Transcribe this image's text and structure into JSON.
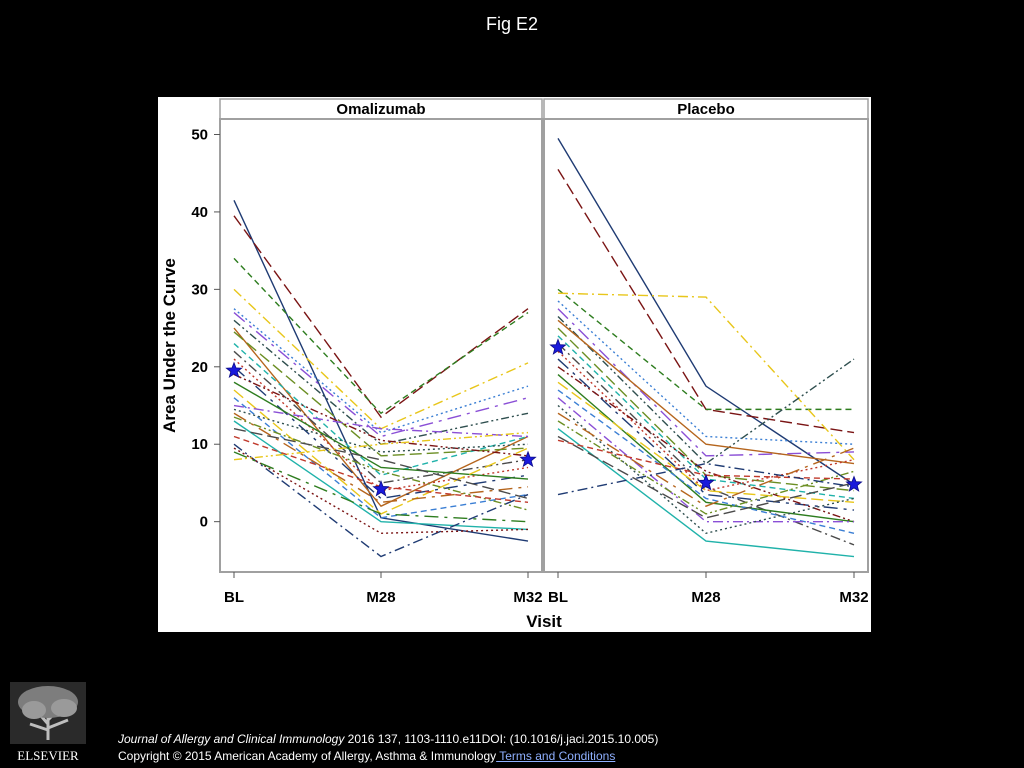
{
  "slide": {
    "title": "Fig E2",
    "citation_journal": "Journal of Allergy and Clinical Immunology",
    "citation_rest": " 2016 137, 1103-1110.e11DOI: (10.1016/j.jaci.2015.10.005)",
    "copyright": "Copyright © 2015 American Academy of Allergy, Asthma & Immunology",
    "terms_link": " Terms and Conditions",
    "publisher_logo_text": "ELSEVIER"
  },
  "colors": {
    "background": "#000000",
    "panel_strip": "#ffffff",
    "median_star": "#1a1adb",
    "series_palette": [
      "#1f3b73",
      "#7a1414",
      "#2e7d1f",
      "#e8c61a",
      "#3b7fd4",
      "#8a4fd6",
      "#2f4f4f",
      "#b5651d",
      "#6b8e23",
      "#20b2aa",
      "#4a4a4a",
      "#c0392b"
    ]
  },
  "chart_data": {
    "type": "line",
    "ylabel": "Area Under the Curve",
    "xlabel": "Visit",
    "ylim": [
      -6.5,
      52
    ],
    "yticks": [
      0,
      10,
      20,
      30,
      40,
      50
    ],
    "categories": [
      "BL",
      "M28",
      "M32"
    ],
    "grid": false,
    "marker": "star",
    "panels": [
      {
        "name": "Omalizumab",
        "median": [
          19.5,
          4.2,
          8.0
        ],
        "series": [
          {
            "values": [
              41.5,
              0.5,
              -2.5
            ]
          },
          {
            "values": [
              39.5,
              13.5,
              27.5
            ]
          },
          {
            "values": [
              34.0,
              14.0,
              27.0
            ]
          },
          {
            "values": [
              30.0,
              12.0,
              20.5
            ]
          },
          {
            "values": [
              27.5,
              11.5,
              17.5
            ]
          },
          {
            "values": [
              27.0,
              11.0,
              16.0
            ]
          },
          {
            "values": [
              26.0,
              10.0,
              14.0
            ]
          },
          {
            "values": [
              25.0,
              2.0,
              11.0
            ]
          },
          {
            "values": [
              24.5,
              8.5,
              9.5
            ]
          },
          {
            "values": [
              23.0,
              6.0,
              11.0
            ]
          },
          {
            "values": [
              22.0,
              5.0,
              8.0
            ]
          },
          {
            "values": [
              21.0,
              4.0,
              7.0
            ]
          },
          {
            "values": [
              20.0,
              3.0,
              6.0
            ]
          },
          {
            "values": [
              19.0,
              10.5,
              8.5
            ]
          },
          {
            "values": [
              18.0,
              7.0,
              5.5
            ]
          },
          {
            "values": [
              17.0,
              1.0,
              9.5
            ]
          },
          {
            "values": [
              16.0,
              0.5,
              3.5
            ]
          },
          {
            "values": [
              15.0,
              12.0,
              11.0
            ]
          },
          {
            "values": [
              14.5,
              9.0,
              10.0
            ]
          },
          {
            "values": [
              14.0,
              2.5,
              4.5
            ]
          },
          {
            "values": [
              13.5,
              6.5,
              1.5
            ]
          },
          {
            "values": [
              13.0,
              0.0,
              -1.0
            ]
          },
          {
            "values": [
              12.0,
              8.0,
              3.0
            ]
          },
          {
            "values": [
              11.0,
              4.5,
              2.5
            ]
          },
          {
            "values": [
              10.0,
              -4.5,
              3.5
            ]
          },
          {
            "values": [
              9.5,
              -1.5,
              -1.0
            ]
          },
          {
            "values": [
              9.0,
              1.0,
              0.0
            ]
          },
          {
            "values": [
              8.0,
              10.0,
              11.5
            ]
          }
        ]
      },
      {
        "name": "Placebo",
        "median": [
          22.5,
          5.0,
          4.8
        ],
        "series": [
          {
            "values": [
              49.5,
              17.5,
              4.8
            ]
          },
          {
            "values": [
              45.5,
              14.5,
              11.5
            ]
          },
          {
            "values": [
              30.0,
              14.5,
              14.5
            ]
          },
          {
            "values": [
              29.5,
              29.0,
              8.0
            ]
          },
          {
            "values": [
              28.5,
              11.0,
              10.0
            ]
          },
          {
            "values": [
              27.5,
              8.5,
              9.0
            ]
          },
          {
            "values": [
              26.5,
              7.5,
              21.0
            ]
          },
          {
            "values": [
              26.0,
              10.0,
              7.5
            ]
          },
          {
            "values": [
              25.0,
              6.0,
              4.0
            ]
          },
          {
            "values": [
              24.0,
              5.5,
              3.0
            ]
          },
          {
            "values": [
              23.0,
              4.5,
              -3.0
            ]
          },
          {
            "values": [
              22.0,
              4.0,
              8.0
            ]
          },
          {
            "values": [
              21.0,
              3.5,
              1.5
            ]
          },
          {
            "values": [
              20.0,
              6.5,
              0.0
            ]
          },
          {
            "values": [
              19.0,
              2.5,
              0.0
            ]
          },
          {
            "values": [
              18.0,
              4.0,
              2.5
            ]
          },
          {
            "values": [
              17.0,
              3.0,
              -1.5
            ]
          },
          {
            "values": [
              16.0,
              0.0,
              0.0
            ]
          },
          {
            "values": [
              15.0,
              -1.5,
              3.0
            ]
          },
          {
            "values": [
              14.0,
              2.0,
              9.5
            ]
          },
          {
            "values": [
              13.0,
              1.0,
              6.5
            ]
          },
          {
            "values": [
              12.0,
              -2.5,
              -4.5
            ]
          },
          {
            "values": [
              11.0,
              0.5,
              5.0
            ]
          },
          {
            "values": [
              10.5,
              6.0,
              5.5
            ]
          },
          {
            "values": [
              3.5,
              7.5,
              4.5
            ]
          }
        ]
      }
    ]
  }
}
